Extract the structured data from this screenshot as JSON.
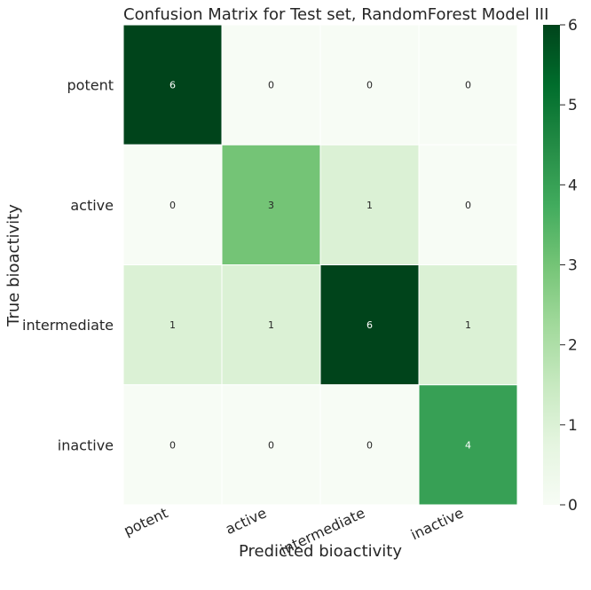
{
  "chart_data": {
    "type": "heatmap",
    "title": "Confusion Matrix for Test set, RandomForest Model III",
    "xlabel": "Predicted bioactivity",
    "ylabel": "True bioactivity",
    "x_categories": [
      "potent",
      "active",
      "intermediate",
      "inactive"
    ],
    "y_categories": [
      "potent",
      "active",
      "intermediate",
      "inactive"
    ],
    "values": [
      [
        6,
        0,
        0,
        0
      ],
      [
        0,
        3,
        1,
        0
      ],
      [
        1,
        1,
        6,
        1
      ],
      [
        0,
        0,
        0,
        4
      ]
    ],
    "colorbar": {
      "min": 0,
      "max": 6,
      "ticks": [
        0,
        1,
        2,
        3,
        4,
        5,
        6
      ],
      "colormap": "Greens",
      "colors": [
        "#f7fcf5",
        "#e5f5e0",
        "#c7e9c0",
        "#a1d99b",
        "#74c476",
        "#41ab5d",
        "#238b45",
        "#006d2c",
        "#00441b"
      ]
    },
    "grid": false
  }
}
